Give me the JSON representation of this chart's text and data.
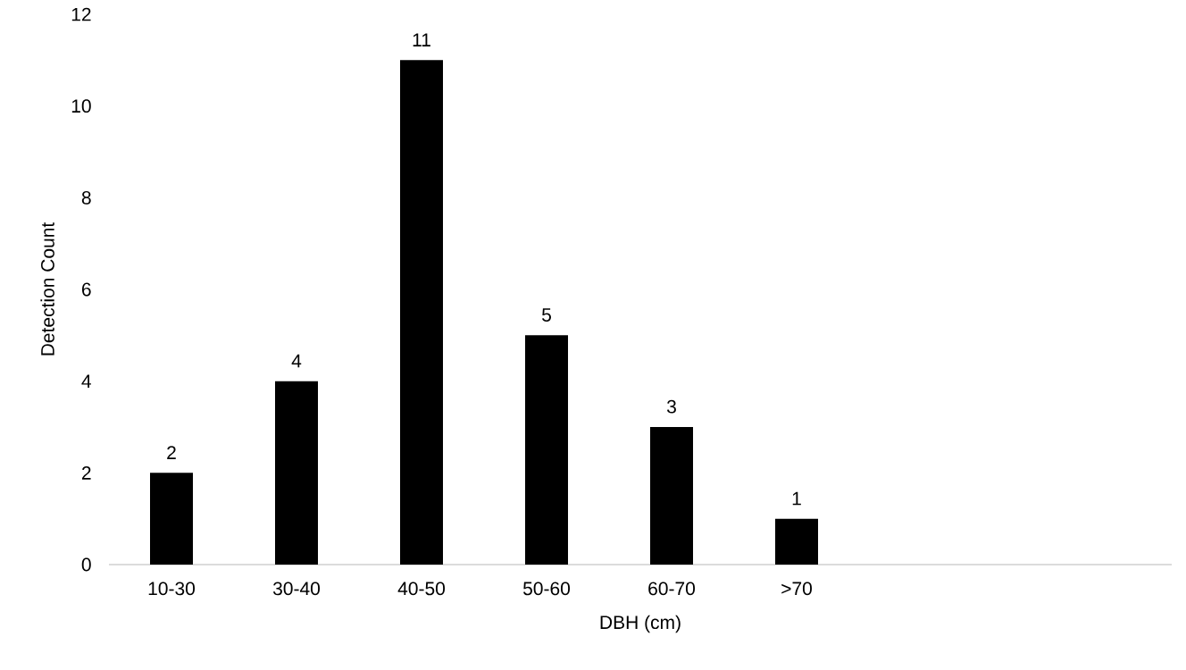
{
  "chart_data": {
    "type": "bar",
    "xlabel": "DBH (cm)",
    "ylabel": "Detection Count",
    "categories": [
      "10-30",
      "30-40",
      "40-50",
      "50-60",
      "60-70",
      ">70",
      null,
      null,
      null
    ],
    "values": [
      2,
      4,
      11,
      5,
      3,
      1,
      null,
      null,
      null
    ],
    "color": "#000000",
    "ylim": [
      0,
      12
    ],
    "yticks": [
      0,
      2,
      4,
      6,
      8,
      10,
      12
    ],
    "grid": false,
    "data_labels": true
  }
}
